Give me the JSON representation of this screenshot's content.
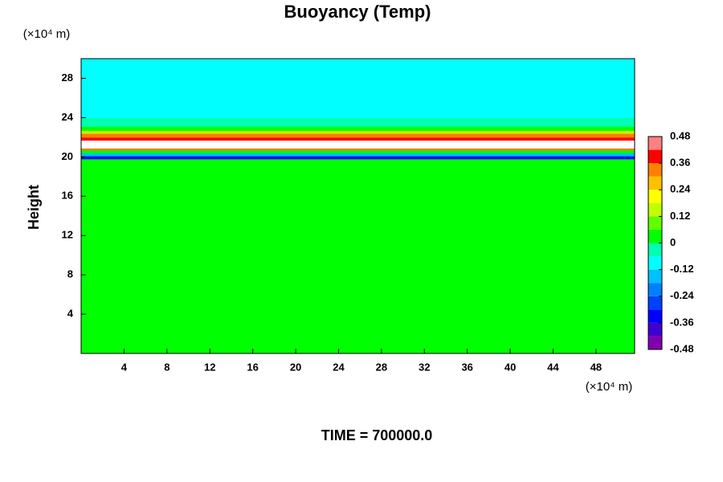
{
  "chart_data": {
    "type": "heatmap",
    "title": "Buoyancy (Temp)",
    "y_label": "Height",
    "y_unit": "(×10⁴ m)",
    "x_unit": "(×10⁴ m)",
    "annotation": "TIME = 700000.0",
    "xlim": [
      0,
      51.6
    ],
    "xticks": [
      4,
      8,
      12,
      16,
      20,
      24,
      28,
      32,
      36,
      40,
      44,
      48
    ],
    "ylim": [
      0,
      30
    ],
    "yticks": [
      4,
      8,
      12,
      16,
      20,
      24,
      28
    ],
    "y_edges": [
      0,
      19.8,
      20.1,
      20.4,
      20.7,
      20.9,
      21.1,
      21.7,
      22.0,
      22.4,
      22.7,
      23.1,
      24.0,
      25.0,
      27.5,
      30
    ],
    "values": [
      0,
      -0.33,
      -0.15,
      0.05,
      0.3,
      0.5,
      0.55,
      0.42,
      0.3,
      0.18,
      0.04,
      -0.04,
      -0.08,
      -0.11,
      -0.07
    ],
    "zlim": [
      -0.48,
      0.48
    ],
    "zticks": [
      0.48,
      0.36,
      0.24,
      0.12,
      0,
      -0.12,
      -0.24,
      -0.36,
      -0.48
    ],
    "colors": [
      "#8000b0",
      "#4000d0",
      "#0000ff",
      "#0040ff",
      "#0080ff",
      "#00c0ff",
      "#00ffff",
      "#00ffb0",
      "#00ff00",
      "#60ff00",
      "#c0ff00",
      "#ffff00",
      "#ffc000",
      "#ff8000",
      "#ff0000",
      "#ff8080"
    ],
    "over_color": "#ffffff"
  }
}
